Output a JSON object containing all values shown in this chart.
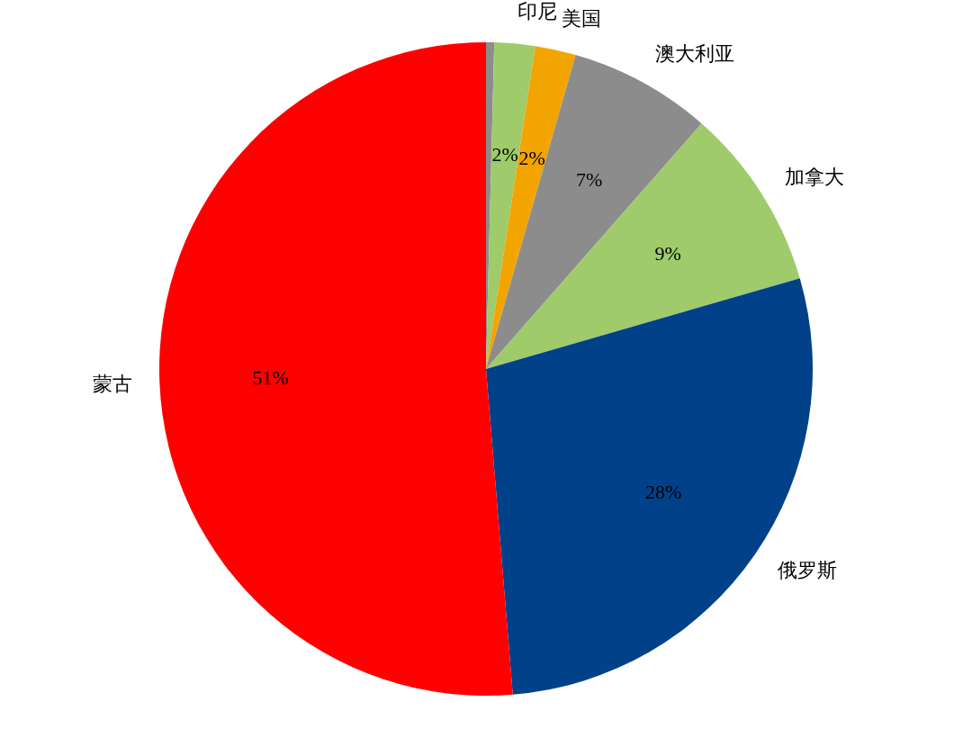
{
  "chart_data": {
    "type": "pie",
    "categories": [
      null,
      "印尼",
      "美国",
      "澳大利亚",
      "加拿大",
      "俄罗斯",
      "蒙古"
    ],
    "values": [
      0.4,
      2,
      2,
      7,
      9,
      28,
      51
    ],
    "colors": [
      "#8c8c8c",
      "#9fcb6b",
      "#f2a500",
      "#8c8c8c",
      "#9fcb6b",
      "#00418a",
      "#ff0000"
    ],
    "value_labels": [
      null,
      "2%",
      "2%",
      "7%",
      "9%",
      "28%",
      "51%"
    ]
  }
}
